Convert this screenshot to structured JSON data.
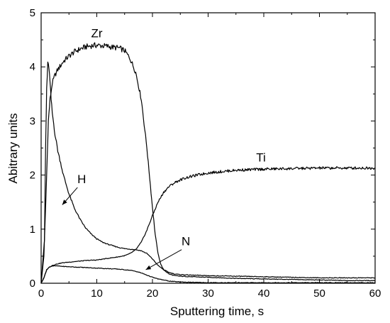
{
  "chart_data": {
    "type": "line",
    "xlabel": "Sputtering time, s",
    "ylabel": "Abitrary units",
    "xlim": [
      0,
      60
    ],
    "ylim": [
      0,
      5
    ],
    "xticks": [
      0,
      10,
      20,
      30,
      40,
      50,
      60
    ],
    "yticks": [
      0,
      1,
      2,
      3,
      4,
      5
    ],
    "grid": false,
    "legend": "none",
    "series": [
      {
        "name": "Zr",
        "x": [
          0,
          0.5,
          1,
          1.3,
          1.6,
          2,
          2.5,
          3,
          4,
          5,
          6,
          7,
          8,
          9,
          10,
          11,
          12,
          13,
          14,
          15,
          16,
          17,
          18,
          19,
          20,
          20.5,
          21,
          21.5,
          22,
          23,
          24,
          25,
          27,
          30,
          35,
          40,
          45,
          50,
          55,
          60
        ],
        "y": [
          0,
          0.5,
          2.0,
          3.0,
          3.4,
          3.7,
          3.85,
          3.95,
          4.1,
          4.2,
          4.28,
          4.33,
          4.37,
          4.39,
          4.4,
          4.39,
          4.38,
          4.36,
          4.35,
          4.3,
          4.15,
          3.9,
          3.4,
          2.5,
          1.4,
          0.9,
          0.55,
          0.35,
          0.25,
          0.17,
          0.14,
          0.13,
          0.12,
          0.11,
          0.09,
          0.08,
          0.07,
          0.06,
          0.05,
          0.05
        ]
      },
      {
        "name": "H",
        "x": [
          0,
          0.6,
          0.8,
          1.0,
          1.2,
          1.4,
          1.6,
          1.8,
          2,
          2.5,
          3,
          4,
          5,
          6,
          7,
          8,
          9,
          10,
          11,
          12,
          13,
          14,
          15,
          16,
          17,
          18,
          19,
          20,
          21,
          22,
          23,
          24,
          25,
          27,
          30,
          35,
          40,
          45,
          50,
          55,
          60
        ],
        "y": [
          0,
          0.8,
          2.5,
          3.6,
          4.05,
          4.0,
          3.7,
          3.4,
          3.15,
          2.75,
          2.45,
          2.0,
          1.65,
          1.38,
          1.18,
          1.02,
          0.91,
          0.82,
          0.76,
          0.72,
          0.69,
          0.66,
          0.64,
          0.63,
          0.62,
          0.6,
          0.55,
          0.45,
          0.33,
          0.25,
          0.2,
          0.17,
          0.16,
          0.15,
          0.14,
          0.13,
          0.12,
          0.11,
          0.1,
          0.1,
          0.1
        ]
      },
      {
        "name": "Ti",
        "x": [
          0,
          0.5,
          1,
          1.5,
          2,
          3,
          4,
          5,
          6,
          8,
          10,
          12,
          14,
          15,
          16,
          17,
          18,
          19,
          20,
          21,
          22,
          23,
          24,
          25,
          26,
          28,
          30,
          32,
          35,
          40,
          45,
          50,
          55,
          60
        ],
        "y": [
          0,
          0.1,
          0.25,
          0.3,
          0.33,
          0.36,
          0.38,
          0.39,
          0.4,
          0.42,
          0.43,
          0.46,
          0.49,
          0.51,
          0.55,
          0.62,
          0.76,
          0.98,
          1.25,
          1.5,
          1.68,
          1.79,
          1.86,
          1.91,
          1.95,
          2.0,
          2.04,
          2.06,
          2.09,
          2.11,
          2.12,
          2.13,
          2.13,
          2.13
        ]
      },
      {
        "name": "N",
        "x": [
          0,
          0.5,
          1,
          1.5,
          2,
          3,
          4,
          6,
          8,
          10,
          12,
          14,
          15,
          16,
          17,
          18,
          19,
          20,
          21,
          22,
          23,
          24,
          25,
          26,
          28,
          30,
          35,
          40,
          45,
          50,
          55,
          60
        ],
        "y": [
          0,
          0.1,
          0.25,
          0.3,
          0.32,
          0.32,
          0.31,
          0.3,
          0.29,
          0.28,
          0.27,
          0.26,
          0.25,
          0.24,
          0.22,
          0.19,
          0.15,
          0.11,
          0.08,
          0.06,
          0.04,
          0.03,
          0.025,
          0.02,
          0.015,
          0.01,
          0.01,
          0.01,
          0.01,
          0.01,
          0.01,
          0.01
        ]
      }
    ],
    "annotations": [
      {
        "text": "Zr",
        "x": 10,
        "y": 4.55
      },
      {
        "text": "Ti",
        "x": 39.5,
        "y": 2.25
      },
      {
        "text": "H",
        "x": 7.3,
        "y": 1.85,
        "arrow_to": [
          3.8,
          1.45
        ]
      },
      {
        "text": "N",
        "x": 26,
        "y": 0.7,
        "arrow_to": [
          18.8,
          0.25
        ]
      }
    ]
  }
}
